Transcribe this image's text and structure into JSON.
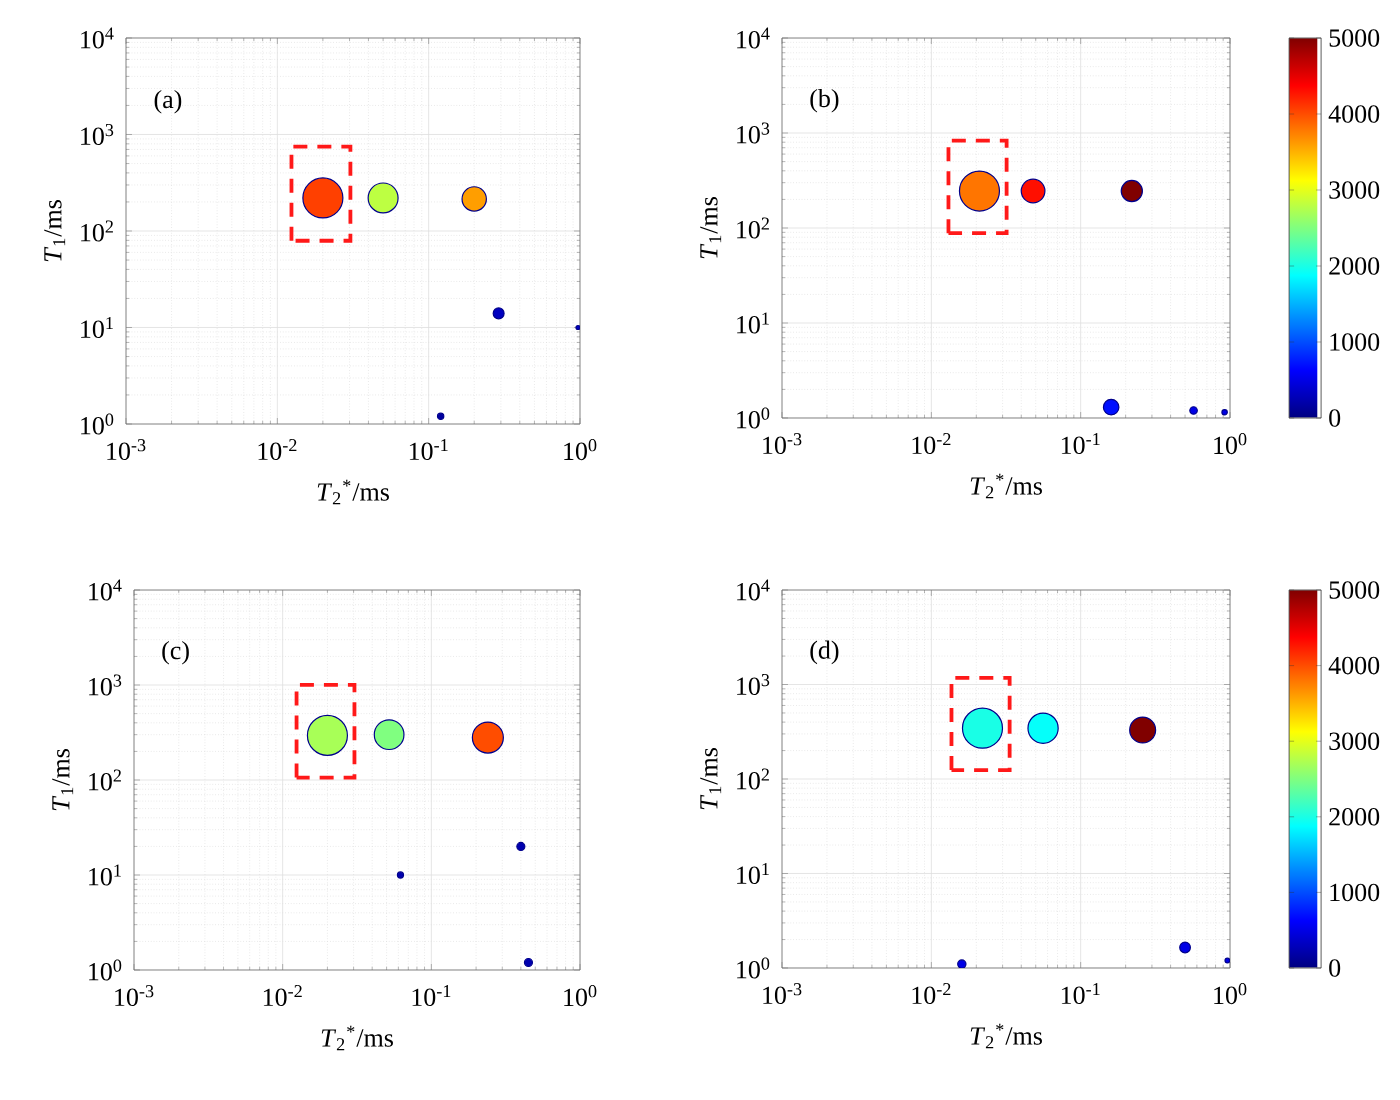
{
  "chart_data": [
    {
      "type": "bubble",
      "annotations": [
        "(a)"
      ],
      "xlabel": "*T*$_{2}$$^{*}$/ms",
      "ylabel": "*T*$_{1}$/ms",
      "x": [
        0.02,
        0.05,
        0.2,
        0.29,
        0.12,
        0.97
      ],
      "values": [
        220,
        220,
        215,
        14,
        1.2,
        10
      ],
      "sizes": [
        1,
        0.56,
        0.37,
        0.074,
        0.025,
        0.01
      ],
      "colors": [
        "#ff4000",
        "#bdff42",
        "#ff9e00",
        "#0000c0",
        "#0000a0",
        "#0000c0"
      ],
      "log": "xy",
      "xlim": [
        0.001,
        1
      ],
      "ylim": [
        1,
        10000
      ],
      "xticks": [
        {
          "value": 0.001,
          "label": "10$^{-3}$"
        },
        {
          "value": 0.01,
          "label": "10$^{-2}$"
        },
        {
          "value": 0.1,
          "label": "10$^{-1}$"
        },
        {
          "value": 1,
          "label": "10$^{0}$"
        }
      ],
      "yticks": [
        {
          "value": 1,
          "label": "10$^{0}$"
        },
        {
          "value": 10,
          "label": "10$^{1}$"
        },
        {
          "value": 100,
          "label": "10$^{2}$"
        },
        {
          "value": 1000,
          "label": "10$^{3}$"
        },
        {
          "value": 10000,
          "label": "10$^{4}$"
        }
      ],
      "grid": true
    },
    {
      "type": "bubble",
      "annotations": [
        "(b)"
      ],
      "xlabel": "*T*$_{2}$$^{*}$/ms",
      "ylabel": "*T*$_{1}$/ms",
      "x": [
        0.021,
        0.048,
        0.22,
        0.16,
        0.57,
        0.92
      ],
      "values": [
        245,
        245,
        245,
        1.3,
        1.2,
        1.15
      ],
      "sizes": [
        1,
        0.35,
        0.28,
        0.15,
        0.035,
        0.018
      ],
      "cvalues": [
        3800,
        4300,
        5000,
        700,
        500,
        500
      ],
      "log": "xy",
      "xlim": [
        0.001,
        1
      ],
      "ylim": [
        1,
        10000
      ],
      "xticks": [
        {
          "value": 0.001,
          "label": "10$^{-3}$"
        },
        {
          "value": 0.01,
          "label": "10$^{-2}$"
        },
        {
          "value": 0.1,
          "label": "10$^{-1}$"
        },
        {
          "value": 1,
          "label": "10$^{0}$"
        }
      ],
      "yticks": [
        {
          "value": 1,
          "label": "10$^{0}$"
        },
        {
          "value": 10,
          "label": "10$^{1}$"
        },
        {
          "value": 100,
          "label": "10$^{2}$"
        },
        {
          "value": 1000,
          "label": "10$^{3}$"
        },
        {
          "value": 10000,
          "label": "10$^{4}$"
        }
      ],
      "grid": true,
      "clim": [
        0,
        5000
      ],
      "cticks": [
        0,
        1000,
        2000,
        3000,
        4000,
        5000
      ]
    },
    {
      "type": "bubble",
      "annotations": [
        "(c)"
      ],
      "xlabel": "*T*$_{2}$$^{*}$/ms",
      "ylabel": "*T*$_{1}$/ms",
      "x": [
        0.02,
        0.052,
        0.24,
        0.4,
        0.062,
        0.45
      ],
      "values": [
        295,
        300,
        280,
        20,
        10,
        1.2
      ],
      "sizes": [
        1,
        0.55,
        0.6,
        0.04,
        0.023,
        0.04
      ],
      "colors": [
        "#a8ff57",
        "#80ff80",
        "#ff4d00",
        "#0000b0",
        "#0000b0",
        "#0000b0"
      ],
      "log": "xy",
      "xlim": [
        0.001,
        1
      ],
      "ylim": [
        1,
        10000
      ],
      "xticks": [
        {
          "value": 0.001,
          "label": "10$^{-3}$"
        },
        {
          "value": 0.01,
          "label": "10$^{-2}$"
        },
        {
          "value": 0.1,
          "label": "10$^{-1}$"
        },
        {
          "value": 1,
          "label": "10$^{0}$"
        }
      ],
      "yticks": [
        {
          "value": 1,
          "label": "10$^{0}$"
        },
        {
          "value": 10,
          "label": "10$^{1}$"
        },
        {
          "value": 100,
          "label": "10$^{2}$"
        },
        {
          "value": 1000,
          "label": "10$^{3}$"
        },
        {
          "value": 10000,
          "label": "10$^{4}$"
        }
      ],
      "grid": true
    },
    {
      "type": "bubble",
      "annotations": [
        "(d)"
      ],
      "xlabel": "*T*$_{2}$$^{*}$/ms",
      "ylabel": "*T*$_{1}$/ms",
      "x": [
        0.022,
        0.056,
        0.26,
        0.016,
        0.5,
        0.96
      ],
      "values": [
        345,
        345,
        330,
        1.1,
        1.65,
        1.2
      ],
      "sizes": [
        1,
        0.57,
        0.42,
        0.043,
        0.071,
        0.014
      ],
      "cvalues": [
        2000,
        1900,
        5000,
        500,
        500,
        500
      ],
      "log": "xy",
      "xlim": [
        0.001,
        1
      ],
      "ylim": [
        1,
        10000
      ],
      "xticks": [
        {
          "value": 0.001,
          "label": "10$^{-3}$"
        },
        {
          "value": 0.01,
          "label": "10$^{-2}$"
        },
        {
          "value": 0.1,
          "label": "10$^{-1}$"
        },
        {
          "value": 1,
          "label": "10$^{0}$"
        }
      ],
      "yticks": [
        {
          "value": 1,
          "label": "10$^{0}$"
        },
        {
          "value": 10,
          "label": "10$^{1}$"
        },
        {
          "value": 100,
          "label": "10$^{2}$"
        },
        {
          "value": 1000,
          "label": "10$^{3}$"
        },
        {
          "value": 10000,
          "label": "10$^{4}$"
        }
      ],
      "grid": true,
      "clim": [
        0,
        5000
      ],
      "cticks": [
        0,
        1000,
        2000,
        3000,
        4000,
        5000
      ]
    }
  ]
}
